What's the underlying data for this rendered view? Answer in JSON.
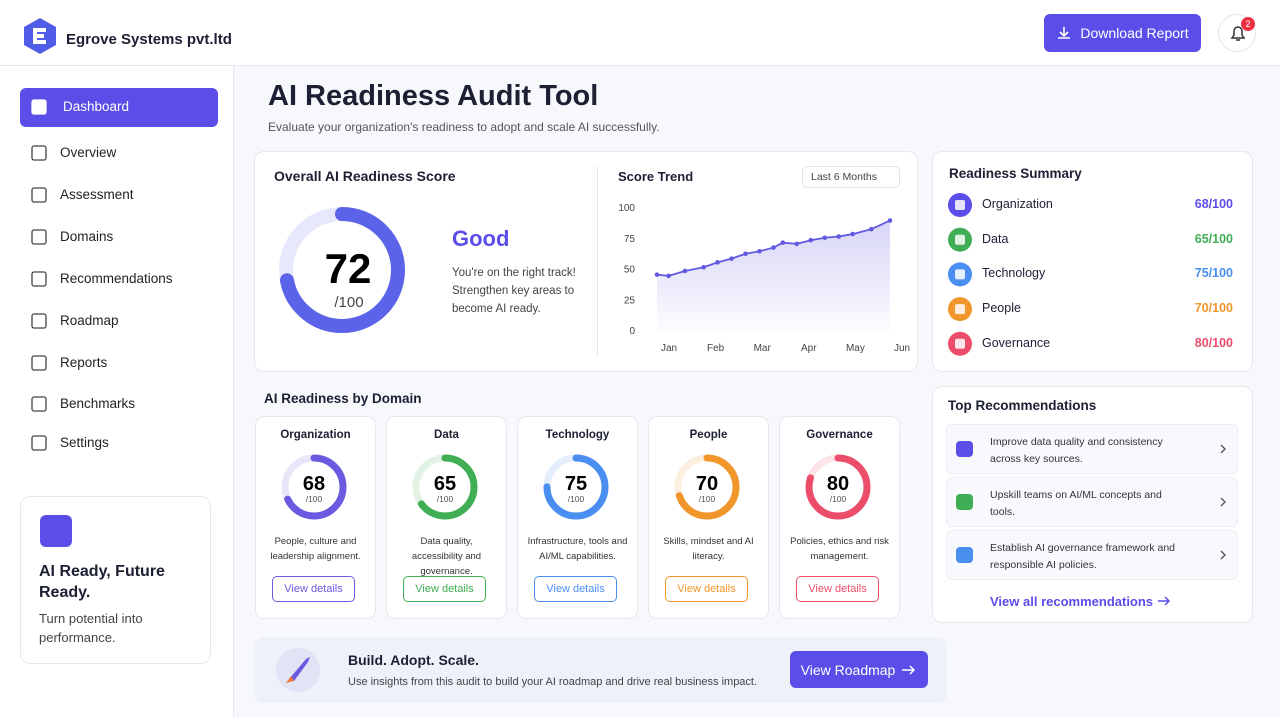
{
  "header": {
    "brand": "Egrove Systems pvt.ltd",
    "download": "Download Report",
    "notifications": "2"
  },
  "sidebar": {
    "nav": [
      "Dashboard",
      "Overview",
      "Assessment",
      "Domains",
      "Recommendations",
      "Roadmap",
      "Reports",
      "Benchmarks",
      "Settings"
    ],
    "promo": {
      "title": "AI Ready, Future Ready.",
      "text": "Turn potential into performance."
    }
  },
  "page": {
    "title": "AI Readiness Audit Tool",
    "subtitle": "Evaluate your organization's readiness to adopt and scale AI successfully."
  },
  "score": {
    "title": "Overall AI Readiness Score",
    "value": 72,
    "max": {
      "value": 100,
      "label": "/100"
    },
    "rating": "Good",
    "text": "You're on the right track! Strengthen key areas to become AI ready.",
    "color": "#5b63e8"
  },
  "trend": {
    "type": "line",
    "title": "Score Trend",
    "filter": "Last 6 Months",
    "color": "#6159e0",
    "x": [
      0,
      0.25,
      0.6,
      1,
      1.3,
      1.6,
      1.9,
      2.2,
      2.5,
      2.7,
      3,
      3.3,
      3.6,
      3.9,
      4.2,
      4.6,
      5
    ],
    "values": [
      45,
      44,
      48,
      51,
      55,
      58,
      62,
      64,
      67,
      71,
      70,
      73,
      75,
      76,
      78,
      82,
      89
    ],
    "xlim": [
      0,
      5
    ],
    "xticks": [
      {
        "value": 0,
        "label": "Jan"
      },
      {
        "value": 1,
        "label": "Feb"
      },
      {
        "value": 2,
        "label": "Mar"
      },
      {
        "value": 3,
        "label": "Apr"
      },
      {
        "value": 4,
        "label": "May"
      },
      {
        "value": 5,
        "label": "Jun"
      }
    ],
    "ylim": [
      0,
      100
    ],
    "yticks": [
      0,
      25,
      50,
      75,
      100
    ]
  },
  "readiness_summary": {
    "title": "Readiness Summary",
    "items": [
      {
        "name": "Organization",
        "score": {
          "value": 68,
          "label": "68/100"
        },
        "color": "#5b4de8"
      },
      {
        "name": "Data",
        "score": {
          "value": 65,
          "label": "65/100"
        },
        "color": "#3fae55"
      },
      {
        "name": "Technology",
        "score": {
          "value": 75,
          "label": "75/100"
        },
        "color": "#4a8ff0"
      },
      {
        "name": "People",
        "score": {
          "value": 70,
          "label": "70/100"
        },
        "color": "#f0962a"
      },
      {
        "name": "Governance",
        "score": {
          "value": 80,
          "label": "80/100"
        },
        "color": "#ec4d6a"
      }
    ]
  },
  "domains": {
    "title": "AI Readiness by Domain",
    "button": "View details",
    "max": {
      "value": 100,
      "label": "/100"
    },
    "items": [
      {
        "name": "Organization",
        "value": 68,
        "text": "People, culture and leadership alignment.",
        "color": "#6a5ae0"
      },
      {
        "name": "Data",
        "value": 65,
        "text": "Data quality, accessibility and governance.",
        "color": "#3fae55"
      },
      {
        "name": "Technology",
        "value": 75,
        "text": "Infrastructure, tools and AI/ML capabilities.",
        "color": "#4a8ff0"
      },
      {
        "name": "People",
        "value": 70,
        "text": "Skills, mindset and AI literacy.",
        "color": "#f0962a"
      },
      {
        "name": "Governance",
        "value": 80,
        "text": "Policies, ethics and risk management.",
        "color": "#ec4d6a"
      }
    ]
  },
  "recommendations": {
    "title": "Top Recommendations",
    "items": [
      "Improve data quality and consistency across key sources.",
      "Upskill teams on AI/ML concepts and tools.",
      "Establish AI governance framework and responsible AI policies."
    ],
    "link": "View all recommendations"
  },
  "banner": {
    "title": "Build. Adopt. Scale.",
    "text": "Use insights from this audit to build your AI roadmap and drive real business impact.",
    "button": "View Roadmap"
  }
}
